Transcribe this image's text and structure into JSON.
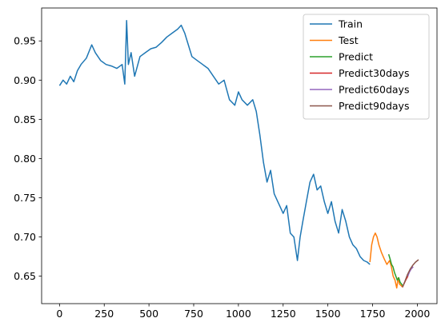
{
  "chart_data": {
    "type": "line",
    "xlim": [
      -100,
      2110
    ],
    "ylim": [
      0.615,
      0.992
    ],
    "xticks": [
      0,
      250,
      500,
      750,
      1000,
      1250,
      1500,
      1750,
      2000
    ],
    "yticks": [
      0.65,
      0.7,
      0.75,
      0.8,
      0.85,
      0.9,
      0.95
    ],
    "xtick_labels": [
      "0",
      "250",
      "500",
      "750",
      "1000",
      "1250",
      "1500",
      "1750",
      "2000"
    ],
    "ytick_labels": [
      "0.65",
      "0.70",
      "0.75",
      "0.80",
      "0.85",
      "0.90",
      "0.95"
    ],
    "grid": false,
    "legend_position": "top-right",
    "series": [
      {
        "name": "Train",
        "color": "#1f77b4",
        "x": [
          0,
          20,
          40,
          60,
          80,
          100,
          120,
          150,
          180,
          200,
          230,
          260,
          290,
          320,
          350,
          365,
          375,
          385,
          400,
          420,
          450,
          480,
          510,
          540,
          570,
          600,
          630,
          660,
          680,
          700,
          720,
          740,
          770,
          800,
          830,
          860,
          890,
          920,
          950,
          980,
          1000,
          1020,
          1050,
          1080,
          1100,
          1120,
          1140,
          1160,
          1180,
          1200,
          1220,
          1250,
          1270,
          1290,
          1310,
          1330,
          1345,
          1360,
          1380,
          1400,
          1420,
          1440,
          1460,
          1480,
          1500,
          1520,
          1540,
          1560,
          1580,
          1600,
          1620,
          1640,
          1660,
          1680,
          1700,
          1720,
          1735
        ],
        "values": [
          0.893,
          0.9,
          0.895,
          0.905,
          0.898,
          0.912,
          0.92,
          0.928,
          0.945,
          0.935,
          0.925,
          0.92,
          0.918,
          0.915,
          0.92,
          0.895,
          0.976,
          0.92,
          0.935,
          0.905,
          0.93,
          0.935,
          0.94,
          0.942,
          0.948,
          0.955,
          0.96,
          0.965,
          0.97,
          0.96,
          0.945,
          0.93,
          0.925,
          0.92,
          0.915,
          0.905,
          0.895,
          0.9,
          0.875,
          0.868,
          0.885,
          0.875,
          0.868,
          0.875,
          0.86,
          0.83,
          0.795,
          0.77,
          0.785,
          0.755,
          0.745,
          0.73,
          0.74,
          0.705,
          0.7,
          0.67,
          0.7,
          0.72,
          0.745,
          0.77,
          0.78,
          0.76,
          0.765,
          0.745,
          0.73,
          0.745,
          0.72,
          0.705,
          0.735,
          0.72,
          0.7,
          0.69,
          0.685,
          0.675,
          0.67,
          0.668,
          0.665
        ]
      },
      {
        "name": "Test",
        "color": "#ff7f0e",
        "x": [
          1735,
          1745,
          1755,
          1765,
          1775,
          1785,
          1800,
          1815,
          1830,
          1845,
          1855,
          1865,
          1875,
          1885,
          1893,
          1900,
          1910,
          1917
        ],
        "values": [
          0.668,
          0.69,
          0.7,
          0.705,
          0.7,
          0.69,
          0.68,
          0.672,
          0.665,
          0.67,
          0.662,
          0.65,
          0.645,
          0.635,
          0.648,
          0.64,
          0.638,
          0.636
        ]
      },
      {
        "name": "Predict",
        "color": "#2ca02c",
        "x": [
          1840,
          1848,
          1856,
          1864,
          1872,
          1880,
          1888,
          1896,
          1904,
          1912,
          1917
        ],
        "values": [
          0.678,
          0.672,
          0.665,
          0.662,
          0.655,
          0.65,
          0.645,
          0.648,
          0.642,
          0.64,
          0.638
        ]
      },
      {
        "name": "Predict30days",
        "color": "#d62728",
        "x": [
          1917,
          1925,
          1935,
          1947
        ],
        "values": [
          0.636,
          0.64,
          0.645,
          0.65
        ]
      },
      {
        "name": "Predict60days",
        "color": "#9467bd",
        "x": [
          1947,
          1955,
          1965,
          1977
        ],
        "values": [
          0.65,
          0.655,
          0.659,
          0.662
        ]
      },
      {
        "name": "Predict90days",
        "color": "#8c564b",
        "x": [
          1917,
          1930,
          1945,
          1960,
          1975,
          1990,
          2007
        ],
        "values": [
          0.636,
          0.643,
          0.652,
          0.659,
          0.664,
          0.668,
          0.671
        ]
      }
    ]
  }
}
